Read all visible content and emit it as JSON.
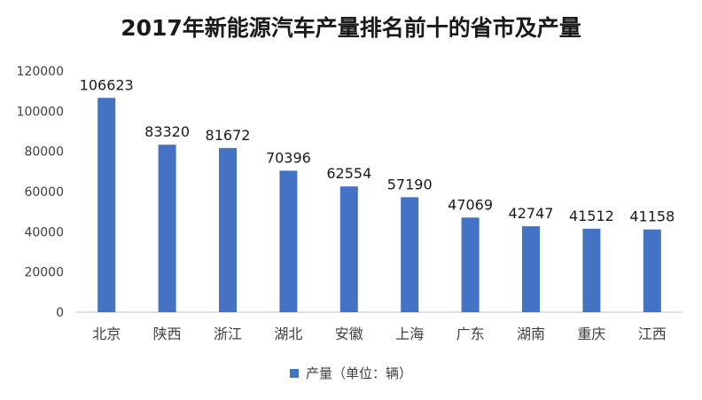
{
  "colors": {
    "bar": "#4472C4",
    "axis": "#bfbfbf",
    "text": "#404040"
  },
  "chart_data": {
    "type": "bar",
    "title": "2017年新能源汽车产量排名前十的省市及产量",
    "categories": [
      "北京",
      "陕西",
      "浙江",
      "湖北",
      "安徽",
      "上海",
      "广东",
      "湖南",
      "重庆",
      "江西"
    ],
    "series": [
      {
        "name": "产量（单位：辆）",
        "values": [
          106623,
          83320,
          81672,
          70396,
          62554,
          57190,
          47069,
          42747,
          41512,
          41158
        ]
      }
    ],
    "ylim": [
      0,
      120000
    ],
    "yticks": [
      0,
      20000,
      40000,
      60000,
      80000,
      100000,
      120000
    ],
    "grid": false,
    "legend_position": "bottom",
    "data_labels": true
  }
}
